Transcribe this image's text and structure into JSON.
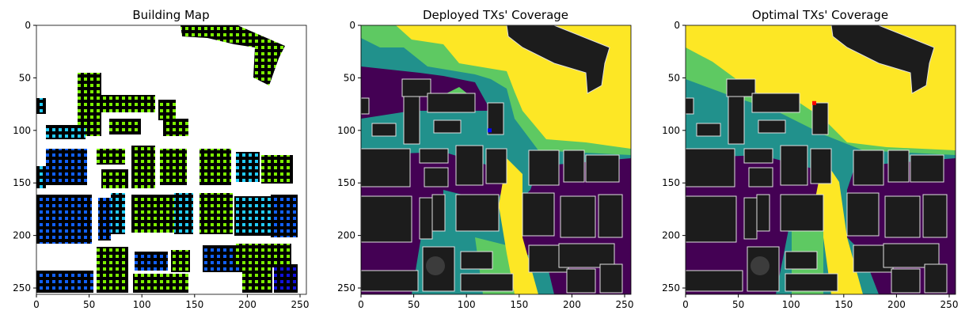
{
  "chart_data": [
    {
      "type": "heatmap",
      "title": "Building Map",
      "xlim": [
        0,
        256
      ],
      "ylim": [
        256,
        0
      ],
      "x_ticks": [
        0,
        50,
        100,
        150,
        200,
        250
      ],
      "y_ticks": [
        0,
        50,
        100,
        150,
        200,
        250
      ],
      "grid": false,
      "colors": {
        "background": "#ffffff",
        "building": "#000000",
        "cell_green": "#7cf000",
        "cell_cyan": "#22ccff",
        "cell_blue": "#1060ff",
        "cell_navy": "#1010dd"
      }
    },
    {
      "type": "heatmap",
      "title": "Deployed TXs' Coverage",
      "xlim": [
        0,
        256
      ],
      "ylim": [
        256,
        0
      ],
      "x_ticks": [
        0,
        50,
        100,
        150,
        200,
        250
      ],
      "y_ticks": [
        0,
        50,
        100,
        150,
        200,
        250
      ],
      "grid": false,
      "tx_marker": {
        "x": 122,
        "y": 100,
        "color": "#0000ff"
      },
      "colors": {
        "level_high": "#fde725",
        "level_mid": "#5ec962",
        "level_low": "#21918c",
        "level_none": "#440154",
        "building": "#1c1c1c",
        "outline": "#e0e0e0"
      }
    },
    {
      "type": "heatmap",
      "title": "Optimal TXs' Coverage",
      "xlim": [
        0,
        256
      ],
      "ylim": [
        256,
        0
      ],
      "x_ticks": [
        0,
        50,
        100,
        150,
        200,
        250
      ],
      "y_ticks": [
        0,
        50,
        100,
        150,
        200,
        250
      ],
      "grid": false,
      "tx_marker": {
        "x": 122,
        "y": 74,
        "color": "#ff0000"
      },
      "colors": {
        "level_high": "#fde725",
        "level_mid": "#5ec962",
        "level_low": "#21918c",
        "level_none": "#440154",
        "building": "#1c1c1c",
        "outline": "#e0e0e0"
      }
    }
  ]
}
